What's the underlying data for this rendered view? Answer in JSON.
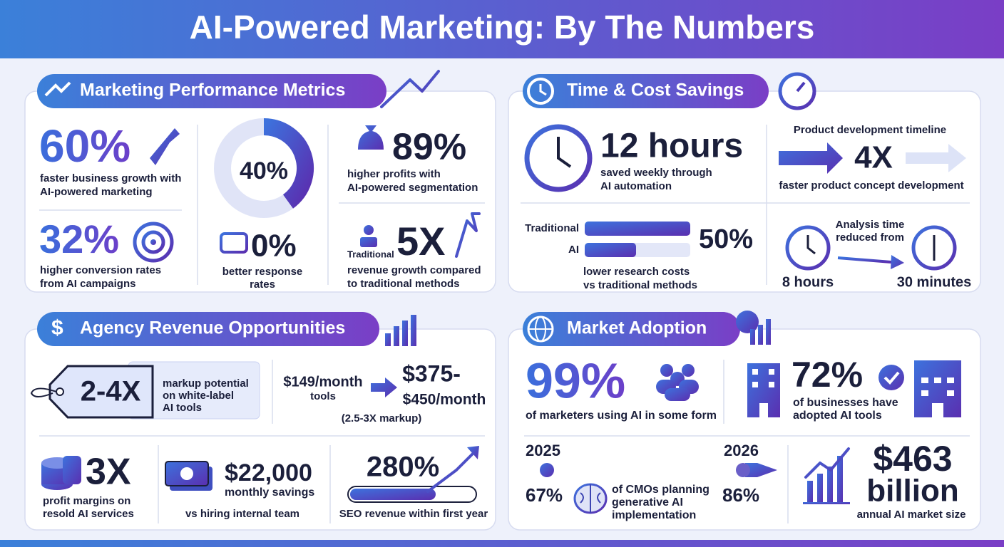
{
  "header": {
    "title": "AI-Powered Marketing: By The Numbers"
  },
  "sections": [
    {
      "title": "Marketing Performance Metrics",
      "stats": [
        {
          "value": "60%",
          "label": [
            "faster business growth with",
            "AI-powered marketing"
          ]
        },
        {
          "value": "40%"
        },
        {
          "value": "89%",
          "label": [
            "higher profits with",
            "AI-powered segmentation"
          ]
        },
        {
          "value": "32%",
          "label": [
            "higher conversion rates",
            "from AI campaigns"
          ]
        },
        {
          "value": "0%",
          "label": [
            "better response",
            "rates"
          ]
        },
        {
          "value": "5X",
          "note": "Traditional",
          "label": [
            "revenue growth compared",
            "to traditional methods"
          ]
        }
      ]
    },
    {
      "title": "Time & Cost Savings",
      "stats": [
        {
          "value": "12 hours",
          "label": [
            "saved weekly through",
            "AI automation"
          ]
        },
        {
          "heading": "Product development timeline",
          "value": "4X",
          "label": [
            "faster product concept development"
          ]
        },
        {
          "bars": [
            "Traditional",
            "AI"
          ],
          "value": "50%",
          "label": [
            "lower research costs",
            "vs traditional methods"
          ]
        },
        {
          "heading": [
            "Analysis time",
            "reduced from"
          ],
          "from": "8 hours",
          "to": "30 minutes"
        }
      ]
    },
    {
      "title": "Agency Revenue Opportunities",
      "stats": [
        {
          "value": "2-4X",
          "label": [
            "markup potential",
            "on white-label",
            "AI tools"
          ]
        },
        {
          "from": "$149/month",
          "from_label": "tools",
          "to": [
            "$375-",
            "$450/month"
          ],
          "note": "(2.5-3X markup)"
        },
        {
          "value": "3X",
          "label": [
            "profit margins on",
            "resold AI services"
          ]
        },
        {
          "value": "$22,000",
          "label": [
            "monthly savings",
            "vs hiring internal team"
          ]
        },
        {
          "value": "280%",
          "label": [
            "SEO revenue within first year"
          ]
        }
      ]
    },
    {
      "title": "Market Adoption",
      "stats": [
        {
          "value": "99%",
          "label": [
            "of marketers using AI in some form"
          ]
        },
        {
          "value": "72%",
          "label": [
            "of businesses have",
            "adopted AI tools"
          ]
        },
        {
          "years": [
            "2025",
            "2026"
          ],
          "values": [
            "67%",
            "86%"
          ],
          "label": [
            "of CMOs planning",
            "generative AI",
            "implementation"
          ]
        },
        {
          "value": [
            "$463",
            "billion"
          ],
          "label": [
            "annual AI market size"
          ]
        }
      ]
    }
  ]
}
